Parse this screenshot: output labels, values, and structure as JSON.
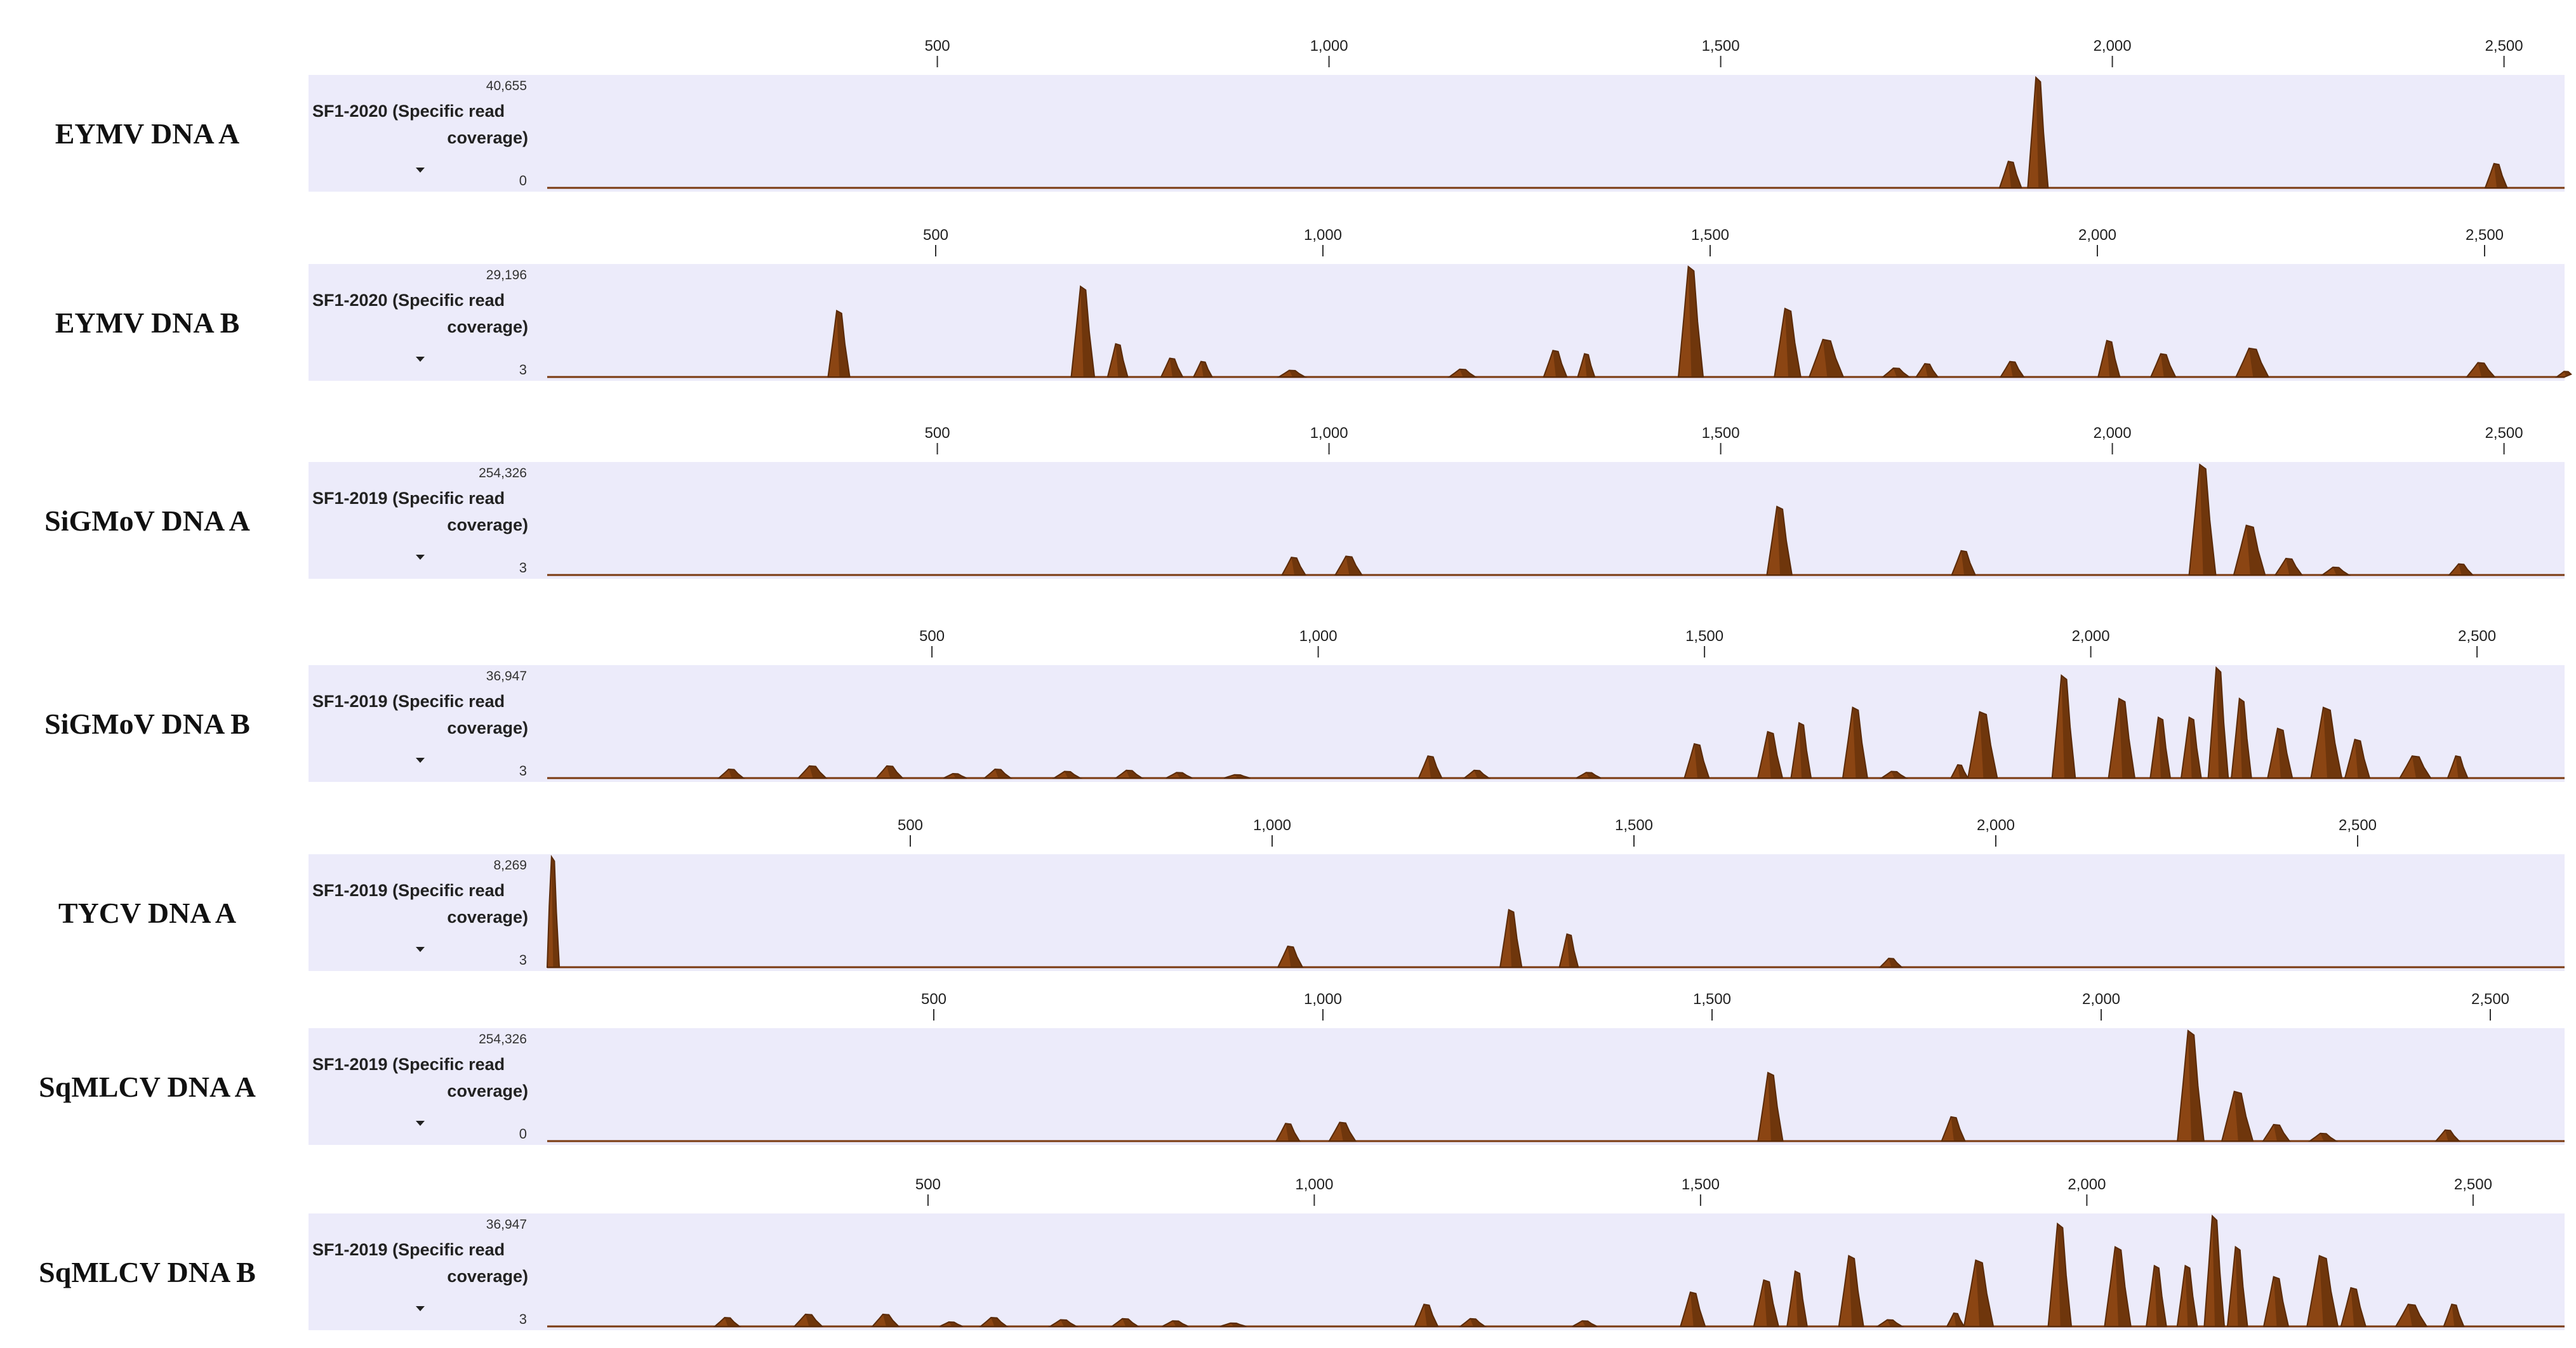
{
  "colors": {
    "fill": "#8B4513",
    "fill_dark": "#5A2A08",
    "panel_bg": "#ECEBFA",
    "baseline": "#7A3A10"
  },
  "chart_data": [
    {
      "type": "area",
      "label": "EYMV DNA A",
      "track_line1": "SF1-2020 (Specific read",
      "track_line2": "coverage)",
      "y_max_label": "40,655",
      "y_min_label": "0",
      "y_max": 40655,
      "y_min": 0,
      "x_ticks": [
        500,
        1000,
        1500,
        2000,
        2500
      ],
      "x_tick_labels": [
        "500",
        "1,000",
        "1,500",
        "2,000",
        "2,500"
      ],
      "seq_length": 2620,
      "peaks": [
        {
          "pos": 1870,
          "height": 0.24,
          "width": 28
        },
        {
          "pos": 1905,
          "height": 1.0,
          "width": 26
        },
        {
          "pos": 2490,
          "height": 0.22,
          "width": 28
        }
      ]
    },
    {
      "type": "area",
      "label": "EYMV DNA B",
      "track_line1": "SF1-2020 (Specific read",
      "track_line2": "coverage)",
      "y_max_label": "29,196",
      "y_min_label": "3",
      "y_max": 29196,
      "y_min": 3,
      "x_ticks": [
        500,
        1000,
        1500,
        2000,
        2500
      ],
      "x_tick_labels": [
        "500",
        "1,000",
        "1,500",
        "2,000",
        "2,500"
      ],
      "seq_length": 2620,
      "peaks": [
        {
          "pos": 375,
          "height": 0.6,
          "width": 28
        },
        {
          "pos": 690,
          "height": 0.82,
          "width": 30
        },
        {
          "pos": 735,
          "height": 0.3,
          "width": 26
        },
        {
          "pos": 805,
          "height": 0.17,
          "width": 28
        },
        {
          "pos": 845,
          "height": 0.14,
          "width": 24
        },
        {
          "pos": 960,
          "height": 0.06,
          "width": 34
        },
        {
          "pos": 1180,
          "height": 0.07,
          "width": 34
        },
        {
          "pos": 1300,
          "height": 0.24,
          "width": 30
        },
        {
          "pos": 1340,
          "height": 0.21,
          "width": 22
        },
        {
          "pos": 1475,
          "height": 1.0,
          "width": 32
        },
        {
          "pos": 1600,
          "height": 0.62,
          "width": 34
        },
        {
          "pos": 1650,
          "height": 0.34,
          "width": 44
        },
        {
          "pos": 1740,
          "height": 0.08,
          "width": 34
        },
        {
          "pos": 1780,
          "height": 0.12,
          "width": 28
        },
        {
          "pos": 1890,
          "height": 0.14,
          "width": 30
        },
        {
          "pos": 2015,
          "height": 0.33,
          "width": 28
        },
        {
          "pos": 2085,
          "height": 0.21,
          "width": 32
        },
        {
          "pos": 2200,
          "height": 0.26,
          "width": 42
        },
        {
          "pos": 2495,
          "height": 0.13,
          "width": 36
        },
        {
          "pos": 2605,
          "height": 0.05,
          "width": 24
        }
      ]
    },
    {
      "type": "area",
      "label": "SiGMoV DNA A",
      "track_line1": "SF1-2019 (Specific read",
      "track_line2": "coverage)",
      "y_max_label": "254,326",
      "y_min_label": "3",
      "y_max": 254326,
      "y_min": 3,
      "x_ticks": [
        500,
        1000,
        1500,
        2000,
        2500
      ],
      "x_tick_labels": [
        "500",
        "1,000",
        "1,500",
        "2,000",
        "2,500"
      ],
      "seq_length": 2580,
      "peaks": [
        {
          "pos": 955,
          "height": 0.16,
          "width": 30
        },
        {
          "pos": 1025,
          "height": 0.17,
          "width": 34
        },
        {
          "pos": 1575,
          "height": 0.62,
          "width": 32
        },
        {
          "pos": 1810,
          "height": 0.22,
          "width": 30
        },
        {
          "pos": 2115,
          "height": 1.0,
          "width": 34
        },
        {
          "pos": 2175,
          "height": 0.45,
          "width": 40
        },
        {
          "pos": 2225,
          "height": 0.15,
          "width": 34
        },
        {
          "pos": 2285,
          "height": 0.07,
          "width": 34
        },
        {
          "pos": 2445,
          "height": 0.1,
          "width": 30
        }
      ]
    },
    {
      "type": "area",
      "label": "SiGMoV DNA B",
      "track_line1": "SF1-2019 (Specific read",
      "track_line2": "coverage)",
      "y_max_label": "36,947",
      "y_min_label": "3",
      "y_max": 36947,
      "y_min": 3,
      "x_ticks": [
        500,
        1000,
        1500,
        2000,
        2500
      ],
      "x_tick_labels": [
        "500",
        "1,000",
        "1,500",
        "2,000",
        "2,500"
      ],
      "seq_length": 2620,
      "peaks": [
        {
          "pos": 240,
          "height": 0.08,
          "width": 32
        },
        {
          "pos": 345,
          "height": 0.11,
          "width": 36
        },
        {
          "pos": 445,
          "height": 0.11,
          "width": 34
        },
        {
          "pos": 530,
          "height": 0.04,
          "width": 30
        },
        {
          "pos": 585,
          "height": 0.08,
          "width": 34
        },
        {
          "pos": 675,
          "height": 0.06,
          "width": 34
        },
        {
          "pos": 755,
          "height": 0.07,
          "width": 34
        },
        {
          "pos": 820,
          "height": 0.05,
          "width": 34
        },
        {
          "pos": 895,
          "height": 0.03,
          "width": 34
        },
        {
          "pos": 1145,
          "height": 0.2,
          "width": 30
        },
        {
          "pos": 1205,
          "height": 0.07,
          "width": 32
        },
        {
          "pos": 1350,
          "height": 0.05,
          "width": 32
        },
        {
          "pos": 1490,
          "height": 0.31,
          "width": 32
        },
        {
          "pos": 1585,
          "height": 0.42,
          "width": 32
        },
        {
          "pos": 1625,
          "height": 0.5,
          "width": 26
        },
        {
          "pos": 1695,
          "height": 0.64,
          "width": 32
        },
        {
          "pos": 1745,
          "height": 0.06,
          "width": 32
        },
        {
          "pos": 1830,
          "height": 0.12,
          "width": 22
        },
        {
          "pos": 1860,
          "height": 0.6,
          "width": 38
        },
        {
          "pos": 1965,
          "height": 0.93,
          "width": 30
        },
        {
          "pos": 2040,
          "height": 0.72,
          "width": 34
        },
        {
          "pos": 2090,
          "height": 0.55,
          "width": 26
        },
        {
          "pos": 2130,
          "height": 0.55,
          "width": 26
        },
        {
          "pos": 2165,
          "height": 1.0,
          "width": 26
        },
        {
          "pos": 2195,
          "height": 0.72,
          "width": 26
        },
        {
          "pos": 2245,
          "height": 0.45,
          "width": 32
        },
        {
          "pos": 2305,
          "height": 0.64,
          "width": 40
        },
        {
          "pos": 2345,
          "height": 0.35,
          "width": 32
        },
        {
          "pos": 2420,
          "height": 0.2,
          "width": 40
        },
        {
          "pos": 2475,
          "height": 0.2,
          "width": 26
        }
      ]
    },
    {
      "type": "area",
      "label": "TYCV DNA A",
      "track_line1": "SF1-2019 (Specific read",
      "track_line2": "coverage)",
      "y_max_label": "8,269",
      "y_min_label": "3",
      "y_max": 8269,
      "y_min": 3,
      "x_ticks": [
        500,
        1000,
        1500,
        2000,
        2500
      ],
      "x_tick_labels": [
        "500",
        "1,000",
        "1,500",
        "2,000",
        "2,500"
      ],
      "seq_length": 2790,
      "peaks": [
        {
          "pos": 6,
          "height": 1.0,
          "width": 18
        },
        {
          "pos": 1025,
          "height": 0.19,
          "width": 34
        },
        {
          "pos": 1330,
          "height": 0.52,
          "width": 30
        },
        {
          "pos": 1410,
          "height": 0.3,
          "width": 26
        },
        {
          "pos": 1855,
          "height": 0.08,
          "width": 30
        }
      ]
    },
    {
      "type": "area",
      "label": "SqMLCV DNA A",
      "track_line1": "SF1-2019 (Specific read",
      "track_line2": "coverage)",
      "y_max_label": "254,326",
      "y_min_label": "0",
      "y_max": 254326,
      "y_min": 0,
      "x_ticks": [
        500,
        1000,
        1500,
        2000,
        2500
      ],
      "x_tick_labels": [
        "500",
        "1,000",
        "1,500",
        "2,000",
        "2,500"
      ],
      "seq_length": 2580,
      "peaks": [
        {
          "pos": 955,
          "height": 0.16,
          "width": 30
        },
        {
          "pos": 1025,
          "height": 0.17,
          "width": 34
        },
        {
          "pos": 1575,
          "height": 0.62,
          "width": 32
        },
        {
          "pos": 1810,
          "height": 0.22,
          "width": 30
        },
        {
          "pos": 2115,
          "height": 1.0,
          "width": 34
        },
        {
          "pos": 2175,
          "height": 0.45,
          "width": 40
        },
        {
          "pos": 2225,
          "height": 0.15,
          "width": 34
        },
        {
          "pos": 2285,
          "height": 0.07,
          "width": 34
        },
        {
          "pos": 2445,
          "height": 0.1,
          "width": 30
        }
      ]
    },
    {
      "type": "area",
      "label": "SqMLCV DNA B",
      "track_line1": "SF1-2019 (Specific read",
      "track_line2": "coverage)",
      "y_max_label": "36,947",
      "y_min_label": "3",
      "y_max": 36947,
      "y_min": 3,
      "x_ticks": [
        500,
        1000,
        1500,
        2000,
        2500
      ],
      "x_tick_labels": [
        "500",
        "1,000",
        "1,500",
        "2,000",
        "2,500"
      ],
      "seq_length": 2620,
      "peaks": [
        {
          "pos": 240,
          "height": 0.08,
          "width": 32
        },
        {
          "pos": 345,
          "height": 0.11,
          "width": 36
        },
        {
          "pos": 445,
          "height": 0.11,
          "width": 34
        },
        {
          "pos": 530,
          "height": 0.04,
          "width": 30
        },
        {
          "pos": 585,
          "height": 0.08,
          "width": 34
        },
        {
          "pos": 675,
          "height": 0.06,
          "width": 34
        },
        {
          "pos": 755,
          "height": 0.07,
          "width": 34
        },
        {
          "pos": 820,
          "height": 0.05,
          "width": 34
        },
        {
          "pos": 895,
          "height": 0.03,
          "width": 34
        },
        {
          "pos": 1145,
          "height": 0.2,
          "width": 30
        },
        {
          "pos": 1205,
          "height": 0.07,
          "width": 32
        },
        {
          "pos": 1350,
          "height": 0.05,
          "width": 32
        },
        {
          "pos": 1490,
          "height": 0.31,
          "width": 32
        },
        {
          "pos": 1585,
          "height": 0.42,
          "width": 32
        },
        {
          "pos": 1625,
          "height": 0.5,
          "width": 26
        },
        {
          "pos": 1695,
          "height": 0.64,
          "width": 32
        },
        {
          "pos": 1745,
          "height": 0.06,
          "width": 32
        },
        {
          "pos": 1830,
          "height": 0.12,
          "width": 22
        },
        {
          "pos": 1860,
          "height": 0.6,
          "width": 38
        },
        {
          "pos": 1965,
          "height": 0.93,
          "width": 30
        },
        {
          "pos": 2040,
          "height": 0.72,
          "width": 34
        },
        {
          "pos": 2090,
          "height": 0.55,
          "width": 26
        },
        {
          "pos": 2130,
          "height": 0.55,
          "width": 26
        },
        {
          "pos": 2165,
          "height": 1.0,
          "width": 26
        },
        {
          "pos": 2195,
          "height": 0.72,
          "width": 26
        },
        {
          "pos": 2245,
          "height": 0.45,
          "width": 32
        },
        {
          "pos": 2305,
          "height": 0.64,
          "width": 40
        },
        {
          "pos": 2345,
          "height": 0.35,
          "width": 32
        },
        {
          "pos": 2420,
          "height": 0.2,
          "width": 40
        },
        {
          "pos": 2475,
          "height": 0.2,
          "width": 26
        }
      ]
    }
  ]
}
